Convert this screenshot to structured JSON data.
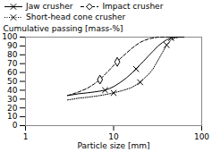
{
  "chart_data": {
    "type": "line",
    "xlabel": "Particle size [mm]",
    "ylabel": "Cumulative passing [mass-%]",
    "log": "x",
    "xlim": [
      1,
      100
    ],
    "ylim": [
      0,
      100
    ],
    "xticks": [
      1,
      10,
      100
    ],
    "yticks": [
      0,
      10,
      20,
      30,
      40,
      50,
      60,
      70,
      80,
      90,
      100
    ],
    "grid": false,
    "legend": "upper left",
    "series": [
      {
        "name": "Jaw crusher",
        "color": "#000000",
        "line_style": "solid",
        "marker": "x",
        "x": [
          3.0,
          3.5,
          4.0,
          5.0,
          6.0,
          7.0,
          8.0,
          9.0,
          10.0,
          12.0,
          14.0,
          16.0,
          18.0,
          20.0,
          22.0,
          25.0,
          28.0,
          32.0,
          36.0,
          40.0,
          45.0,
          50.0,
          56.0,
          63.0
        ],
        "values": [
          34,
          35,
          36,
          37,
          38,
          39,
          40,
          42,
          44,
          49,
          54,
          59,
          64,
          69,
          73,
          79,
          84,
          90,
          94,
          97,
          99,
          100,
          100,
          100
        ],
        "marker_x": [
          8.0,
          18.0,
          45.0
        ]
      },
      {
        "name": "Impact crusher",
        "color": "#000000",
        "line_style": "dashed",
        "marker": "diamond",
        "x": [
          3.0,
          3.5,
          4.0,
          5.0,
          6.0,
          7.0,
          8.0,
          9.0,
          10.0,
          11.0,
          12.0,
          14.0,
          16.0,
          18.0,
          20.0,
          22.0,
          25.0,
          28.0,
          32.0,
          36.0,
          40.0,
          45.0,
          50.0
        ],
        "values": [
          34,
          36,
          38,
          42,
          47,
          52,
          58,
          63,
          68,
          72,
          76,
          82,
          87,
          91,
          94,
          96,
          98,
          99,
          100,
          100,
          100,
          100,
          100
        ],
        "marker_x": [
          7.0,
          11.0
        ]
      },
      {
        "name": "Short-head cone crusher",
        "color": "#000000",
        "line_style": "dotted",
        "marker": "x",
        "x": [
          3.0,
          3.5,
          4.0,
          5.0,
          6.0,
          7.0,
          8.0,
          9.0,
          10.0,
          12.0,
          14.0,
          16.0,
          18.0,
          20.0,
          22.0,
          25.0,
          28.0,
          32.0,
          36.0,
          40.0,
          45.0,
          50.0,
          56.0,
          63.0
        ],
        "values": [
          29,
          30,
          31,
          32,
          33,
          34,
          35,
          36,
          37,
          39,
          41,
          43,
          46,
          49,
          53,
          58,
          64,
          74,
          83,
          91,
          97,
          99,
          100,
          100
        ],
        "marker_x": [
          10.0,
          20.0,
          40.0
        ]
      }
    ]
  }
}
